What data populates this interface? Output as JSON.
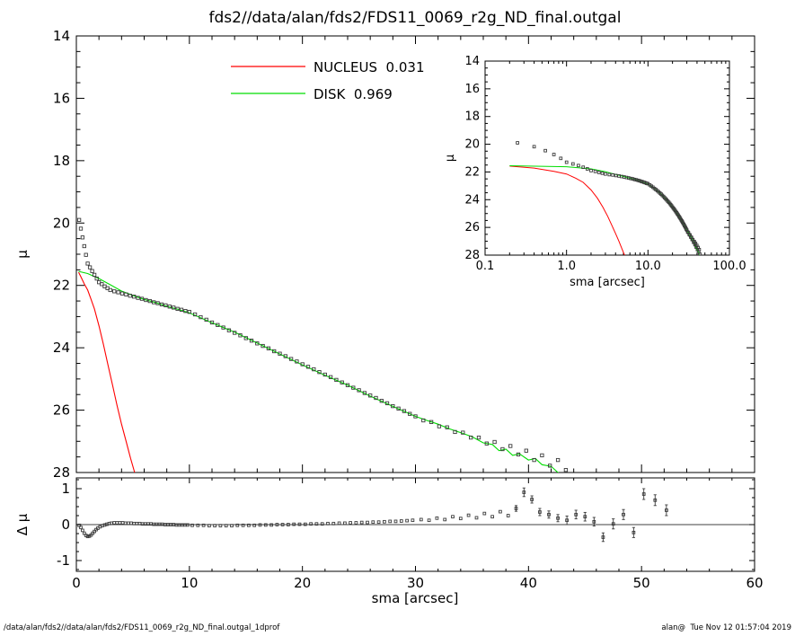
{
  "title": "fds2//data/alan/fds2/FDS11_0069_r2g_ND_final.outgal",
  "footer": {
    "left": "/data/alan/fds2//data/alan/fds2/FDS11_0069_r2g_ND_final.outgal_1dprof",
    "right": "alan@  Tue Nov 12 01:57:04 2019"
  },
  "colors": {
    "background": "#ffffff",
    "axis": "#000000",
    "data_points": "#3a3a3a",
    "nucleus": "#ff0000",
    "disk": "#00dd00"
  },
  "legend": {
    "items": [
      {
        "label": "NUCLEUS  0.031",
        "color": "#ff0000"
      },
      {
        "label": "DISK  0.969",
        "color": "#00dd00"
      }
    ]
  },
  "chart_data": {
    "main_profile": {
      "type": "scatter",
      "ylabel": "μ",
      "xlabel": "",
      "xlim": [
        0,
        60
      ],
      "ylim": [
        28,
        14
      ],
      "xticks": [
        0,
        10,
        20,
        30,
        40,
        50,
        60
      ],
      "x_tick_labels_shown": false,
      "yticks": [
        14,
        16,
        18,
        20,
        22,
        24,
        26,
        28
      ],
      "series": [
        {
          "name": "observed",
          "style": "open-square-markers",
          "color": "#3a3a3a",
          "points": [
            [
              0.25,
              19.9
            ],
            [
              0.4,
              20.18
            ],
            [
              0.55,
              20.46
            ],
            [
              0.7,
              20.74
            ],
            [
              0.85,
              21.02
            ],
            [
              1.0,
              21.3
            ],
            [
              1.2,
              21.42
            ],
            [
              1.4,
              21.54
            ],
            [
              1.6,
              21.66
            ],
            [
              1.8,
              21.78
            ],
            [
              2.0,
              21.9
            ],
            [
              2.25,
              21.96
            ],
            [
              2.5,
              22.03
            ],
            [
              2.75,
              22.09
            ],
            [
              3.0,
              22.15
            ],
            [
              3.35,
              22.19
            ],
            [
              3.7,
              22.22
            ],
            [
              4.05,
              22.26
            ],
            [
              4.4,
              22.29
            ],
            [
              4.75,
              22.33
            ],
            [
              5.1,
              22.36
            ],
            [
              5.45,
              22.4
            ],
            [
              5.8,
              22.43
            ],
            [
              6.15,
              22.47
            ],
            [
              6.5,
              22.5
            ],
            [
              6.85,
              22.54
            ],
            [
              7.2,
              22.57
            ],
            [
              7.55,
              22.61
            ],
            [
              7.9,
              22.64
            ],
            [
              8.25,
              22.68
            ],
            [
              8.6,
              22.71
            ],
            [
              8.95,
              22.75
            ],
            [
              9.3,
              22.78
            ],
            [
              9.65,
              22.82
            ],
            [
              10.0,
              22.85
            ],
            [
              10.5,
              22.93
            ],
            [
              11.0,
              23.02
            ],
            [
              11.5,
              23.1
            ],
            [
              12.0,
              23.19
            ],
            [
              12.5,
              23.27
            ],
            [
              13.0,
              23.35
            ],
            [
              13.5,
              23.44
            ],
            [
              14.0,
              23.52
            ],
            [
              14.5,
              23.6
            ],
            [
              15.0,
              23.69
            ],
            [
              15.5,
              23.77
            ],
            [
              16.0,
              23.86
            ],
            [
              16.5,
              23.94
            ],
            [
              17.0,
              24.02
            ],
            [
              17.5,
              24.11
            ],
            [
              18.0,
              24.19
            ],
            [
              18.5,
              24.27
            ],
            [
              19.0,
              24.36
            ],
            [
              19.5,
              24.44
            ],
            [
              20.0,
              24.53
            ],
            [
              20.5,
              24.61
            ],
            [
              21.0,
              24.69
            ],
            [
              21.5,
              24.78
            ],
            [
              22.0,
              24.86
            ],
            [
              22.5,
              24.94
            ],
            [
              23.0,
              25.03
            ],
            [
              23.5,
              25.11
            ],
            [
              24.0,
              25.2
            ],
            [
              24.5,
              25.28
            ],
            [
              25.0,
              25.36
            ],
            [
              25.5,
              25.45
            ],
            [
              26.0,
              25.53
            ],
            [
              26.5,
              25.61
            ],
            [
              27.0,
              25.7
            ],
            [
              27.5,
              25.78
            ],
            [
              28.0,
              25.87
            ],
            [
              28.5,
              25.95
            ],
            [
              29.0,
              26.03
            ],
            [
              29.5,
              26.12
            ],
            [
              30.0,
              26.2
            ],
            [
              30.7,
              26.33
            ],
            [
              31.4,
              26.38
            ],
            [
              32.1,
              26.52
            ],
            [
              32.8,
              26.55
            ],
            [
              33.5,
              26.7
            ],
            [
              34.2,
              26.72
            ],
            [
              34.9,
              26.88
            ],
            [
              35.6,
              26.88
            ],
            [
              36.3,
              27.07
            ],
            [
              37.0,
              27.02
            ],
            [
              37.7,
              27.25
            ],
            [
              38.4,
              27.15
            ],
            [
              39.1,
              27.42
            ],
            [
              39.8,
              27.3
            ],
            [
              40.5,
              27.6
            ],
            [
              41.2,
              27.45
            ],
            [
              41.9,
              27.78
            ],
            [
              42.6,
              27.6
            ],
            [
              43.3,
              27.92
            ]
          ]
        },
        {
          "name": "NUCLEUS",
          "style": "line",
          "color": "#ff0000",
          "fraction": 0.031,
          "points": [
            [
              0.2,
              21.58
            ],
            [
              0.4,
              21.72
            ],
            [
              0.7,
              21.95
            ],
            [
              1.0,
              22.15
            ],
            [
              1.3,
              22.45
            ],
            [
              1.6,
              22.75
            ],
            [
              2.0,
              23.3
            ],
            [
              2.4,
              23.9
            ],
            [
              2.8,
              24.55
            ],
            [
              3.2,
              25.2
            ],
            [
              3.6,
              25.85
            ],
            [
              4.0,
              26.45
            ],
            [
              4.4,
              27.0
            ],
            [
              4.8,
              27.55
            ],
            [
              5.2,
              28.05
            ],
            [
              5.6,
              28.6
            ]
          ]
        },
        {
          "name": "DISK",
          "style": "line",
          "color": "#00dd00",
          "fraction": 0.969,
          "points": [
            [
              0.2,
              21.55
            ],
            [
              1.0,
              21.62
            ],
            [
              2.0,
              21.78
            ],
            [
              3.0,
              21.98
            ],
            [
              4.0,
              22.18
            ],
            [
              5.0,
              22.32
            ],
            [
              6.0,
              22.45
            ],
            [
              7.0,
              22.55
            ],
            [
              8.0,
              22.67
            ],
            [
              9.0,
              22.77
            ],
            [
              10.0,
              22.88
            ],
            [
              12.0,
              23.2
            ],
            [
              14.0,
              23.5
            ],
            [
              16.0,
              23.85
            ],
            [
              18.0,
              24.2
            ],
            [
              20.0,
              24.55
            ],
            [
              22.0,
              24.88
            ],
            [
              24.0,
              25.2
            ],
            [
              26.0,
              25.55
            ],
            [
              28.0,
              25.88
            ],
            [
              30.0,
              26.2
            ],
            [
              31.0,
              26.33
            ],
            [
              32.0,
              26.45
            ],
            [
              33.0,
              26.6
            ],
            [
              34.0,
              26.72
            ],
            [
              35.0,
              26.85
            ],
            [
              36.0,
              27.05
            ],
            [
              36.8,
              27.1
            ],
            [
              37.4,
              27.3
            ],
            [
              38.0,
              27.25
            ],
            [
              38.6,
              27.45
            ],
            [
              39.2,
              27.4
            ],
            [
              40.0,
              27.6
            ],
            [
              40.6,
              27.55
            ],
            [
              41.2,
              27.75
            ],
            [
              42.0,
              27.8
            ],
            [
              42.6,
              28.0
            ],
            [
              43.2,
              28.1
            ]
          ]
        }
      ]
    },
    "inset_profile": {
      "type": "scatter",
      "xscale": "log",
      "xlabel": "sma [arcsec]",
      "ylabel": "μ",
      "xlim": [
        0.1,
        100
      ],
      "ylim": [
        28,
        14
      ],
      "xticks": [
        0.1,
        1,
        10,
        100
      ],
      "xtick_labels": [
        "0.1",
        "1.0",
        "10.0",
        "100.0"
      ],
      "yticks": [
        14,
        16,
        18,
        20,
        22,
        24,
        26,
        28
      ],
      "series_from": "main_profile"
    },
    "residual_panel": {
      "type": "scatter",
      "xlabel": "sma [arcsec]",
      "ylabel": "Δ μ",
      "xlim": [
        0,
        60
      ],
      "ylim": [
        -1.3,
        1.3
      ],
      "xticks": [
        0,
        10,
        20,
        30,
        40,
        50,
        60
      ],
      "yticks": [
        -1,
        0,
        1
      ],
      "zero_line": true,
      "marker": "open-square",
      "color": "#3a3a3a",
      "points": [
        [
          0.25,
          -0.02
        ],
        [
          0.4,
          -0.08
        ],
        [
          0.55,
          -0.16
        ],
        [
          0.7,
          -0.24
        ],
        [
          0.85,
          -0.3
        ],
        [
          1,
          -0.33
        ],
        [
          1.15,
          -0.32
        ],
        [
          1.3,
          -0.29
        ],
        [
          1.45,
          -0.24
        ],
        [
          1.6,
          -0.19
        ],
        [
          1.75,
          -0.14
        ],
        [
          1.9,
          -0.1
        ],
        [
          2.1,
          -0.06
        ],
        [
          2.3,
          -0.03
        ],
        [
          2.5,
          -0.01
        ],
        [
          2.7,
          0.01
        ],
        [
          2.9,
          0.03
        ],
        [
          3.1,
          0.04
        ],
        [
          3.35,
          0.05
        ],
        [
          3.6,
          0.05
        ],
        [
          3.85,
          0.05
        ],
        [
          4.1,
          0.05
        ],
        [
          4.35,
          0.04
        ],
        [
          4.6,
          0.04
        ],
        [
          4.85,
          0.04
        ],
        [
          5.1,
          0.03
        ],
        [
          5.35,
          0.03
        ],
        [
          5.6,
          0.03
        ],
        [
          5.85,
          0.02
        ],
        [
          6.1,
          0.02
        ],
        [
          6.35,
          0.02
        ],
        [
          6.6,
          0.02
        ],
        [
          6.85,
          0.01
        ],
        [
          7.1,
          0.01
        ],
        [
          7.35,
          0.01
        ],
        [
          7.6,
          0.01
        ],
        [
          7.85,
          0
        ],
        [
          8.1,
          0
        ],
        [
          8.35,
          0
        ],
        [
          8.6,
          0
        ],
        [
          8.85,
          -0.01
        ],
        [
          9.1,
          -0.01
        ],
        [
          9.35,
          -0.01
        ],
        [
          9.6,
          -0.01
        ],
        [
          9.85,
          -0.01
        ],
        [
          10.25,
          -0.02
        ],
        [
          10.75,
          -0.02
        ],
        [
          11.25,
          -0.02
        ],
        [
          11.75,
          -0.03
        ],
        [
          12.25,
          -0.03
        ],
        [
          12.75,
          -0.03
        ],
        [
          13.25,
          -0.03
        ],
        [
          13.75,
          -0.03
        ],
        [
          14.25,
          -0.02
        ],
        [
          14.75,
          -0.02
        ],
        [
          15.25,
          -0.02
        ],
        [
          15.75,
          -0.02
        ],
        [
          16.25,
          -0.01
        ],
        [
          16.75,
          -0.01
        ],
        [
          17.25,
          -0.01
        ],
        [
          17.75,
          0
        ],
        [
          18.25,
          0
        ],
        [
          18.75,
          0
        ],
        [
          19.25,
          0.01
        ],
        [
          19.75,
          0.01
        ],
        [
          20.25,
          0.01
        ],
        [
          20.75,
          0.02
        ],
        [
          21.25,
          0.02
        ],
        [
          21.75,
          0.02
        ],
        [
          22.25,
          0.03
        ],
        [
          22.75,
          0.03
        ],
        [
          23.25,
          0.04
        ],
        [
          23.75,
          0.04
        ],
        [
          24.25,
          0.05
        ],
        [
          24.75,
          0.05
        ],
        [
          25.25,
          0.06
        ],
        [
          25.75,
          0.06
        ],
        [
          26.25,
          0.07
        ],
        [
          26.75,
          0.07
        ],
        [
          27.25,
          0.08
        ],
        [
          27.75,
          0.09
        ],
        [
          28.25,
          0.09
        ],
        [
          28.75,
          0.1
        ],
        [
          29.25,
          0.11
        ],
        [
          29.75,
          0.12
        ],
        [
          30.5,
          0.14
        ],
        [
          31.2,
          0.12
        ],
        [
          31.9,
          0.18
        ],
        [
          32.6,
          0.14
        ],
        [
          33.3,
          0.22
        ],
        [
          34,
          0.17
        ],
        [
          34.7,
          0.26
        ],
        [
          35.4,
          0.19
        ],
        [
          36.1,
          0.31
        ],
        [
          36.8,
          0.22
        ],
        [
          37.5,
          0.36
        ],
        [
          38.2,
          0.25
        ],
        [
          38.9,
          0.45,
          0.08
        ],
        [
          39.6,
          0.9,
          0.12
        ],
        [
          40.3,
          0.7,
          0.1
        ],
        [
          41,
          0.35,
          0.1
        ],
        [
          41.8,
          0.28,
          0.1
        ],
        [
          42.6,
          0.18,
          0.1
        ],
        [
          43.4,
          0.12,
          0.12
        ],
        [
          44.2,
          0.28,
          0.12
        ],
        [
          45,
          0.22,
          0.12
        ],
        [
          45.8,
          0.08,
          0.12
        ],
        [
          46.6,
          -0.35,
          0.12
        ],
        [
          47.5,
          0.02,
          0.14
        ],
        [
          48.4,
          0.28,
          0.14
        ],
        [
          49.3,
          -0.22,
          0.14
        ],
        [
          50.2,
          0.85,
          0.15
        ],
        [
          51.2,
          0.68,
          0.15
        ],
        [
          52.2,
          0.4,
          0.15
        ]
      ]
    }
  }
}
